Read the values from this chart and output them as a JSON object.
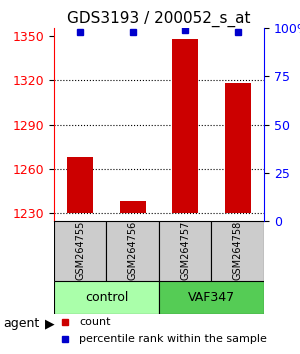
{
  "title": "GDS3193 / 200052_s_at",
  "samples": [
    "GSM264755",
    "GSM264756",
    "GSM264757",
    "GSM264758"
  ],
  "counts": [
    1268,
    1238,
    1348,
    1318
  ],
  "percentiles": [
    98,
    98,
    99,
    98
  ],
  "ylim_left": [
    1225,
    1355
  ],
  "yticks_left": [
    1230,
    1260,
    1290,
    1320,
    1350
  ],
  "yticks_right": [
    0,
    25,
    50,
    75,
    100
  ],
  "bar_color": "#cc0000",
  "percentile_color": "#0000cc",
  "bar_bottom": 1230,
  "groups": [
    {
      "label": "control",
      "indices": [
        0,
        1
      ],
      "color": "#aaffaa"
    },
    {
      "label": "VAF347",
      "indices": [
        2,
        3
      ],
      "color": "#55cc55"
    }
  ],
  "group_label": "agent",
  "legend_count_label": "count",
  "legend_pct_label": "percentile rank within the sample",
  "title_fontsize": 11,
  "axis_label_fontsize": 9,
  "tick_fontsize": 9
}
